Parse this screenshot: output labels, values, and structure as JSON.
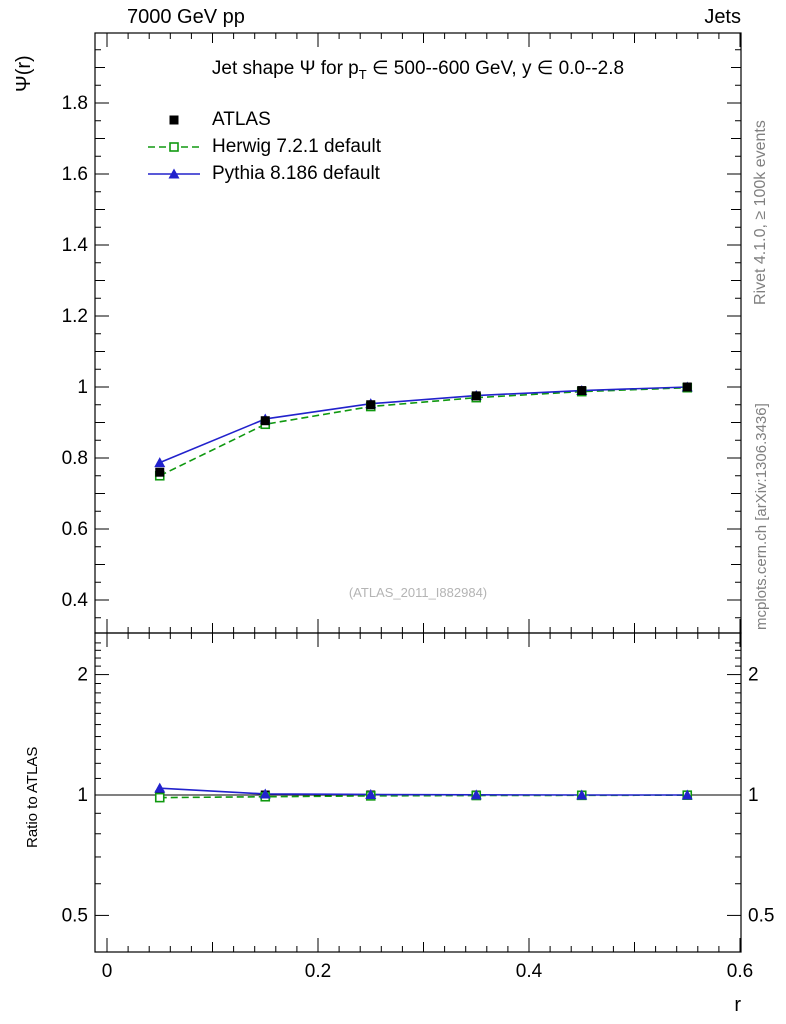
{
  "header": {
    "left": "7000 GeV pp",
    "right": "Jets"
  },
  "side_notes": {
    "top": "Rivet 4.1.0, ≥ 100k events",
    "bottom": "mcplots.cern.ch [arXiv:1306.3436]"
  },
  "watermark": "(ATLAS_2011_I882984)",
  "chart_data": {
    "type": "line",
    "title": {
      "prefix": "Jet shape Ψ for p",
      "sub": "T",
      "suffix": " ∈ 500--600 GeV, y ∈ 0.0--2.8"
    },
    "xlabel": "r",
    "ylabel": "Ψ(r)",
    "ratio_ylabel": "Ratio to ATLAS",
    "xlim": [
      0,
      0.6
    ],
    "ylim": [
      0.3,
      2.0
    ],
    "ratio_ylim": [
      0.4,
      2.5
    ],
    "ratio_scale": "log",
    "grid": "off",
    "legend_position": "top-left",
    "x_ticks": [
      0,
      0.2,
      0.4,
      0.6
    ],
    "y_ticks": [
      0.4,
      0.6,
      0.8,
      1,
      1.2,
      1.4,
      1.6,
      1.8
    ],
    "ratio_ticks": [
      0.5,
      1,
      2
    ],
    "ratio_minor_ticks": [
      0.6,
      0.7,
      0.8,
      0.9,
      1.1,
      1.2,
      1.3,
      1.4,
      1.5,
      1.6,
      1.7,
      1.8,
      1.9,
      2.1,
      2.2,
      2.3,
      2.4
    ],
    "x": [
      0.05,
      0.15,
      0.25,
      0.35,
      0.45,
      0.55
    ],
    "series": [
      {
        "name": "ATLAS",
        "color": "#000000",
        "marker": "square-filled",
        "line": "none",
        "values": [
          0.76,
          0.905,
          0.95,
          0.975,
          0.99,
          1.0
        ],
        "ratio": [
          1.0,
          1.0,
          1.0,
          1.0,
          1.0,
          1.0
        ]
      },
      {
        "name": "Herwig 7.2.1 default",
        "color": "#109910",
        "marker": "square-open",
        "line": "dashed",
        "values": [
          0.75,
          0.895,
          0.945,
          0.97,
          0.987,
          0.998
        ],
        "ratio": [
          0.985,
          0.99,
          0.995,
          0.997,
          0.998,
          0.999
        ]
      },
      {
        "name": "Pythia 8.186 default",
        "color": "#2222cc",
        "marker": "triangle-filled",
        "line": "solid",
        "values": [
          0.787,
          0.91,
          0.953,
          0.976,
          0.99,
          1.0
        ],
        "ratio": [
          1.04,
          1.006,
          1.003,
          1.001,
          1.0,
          1.0
        ]
      }
    ]
  }
}
